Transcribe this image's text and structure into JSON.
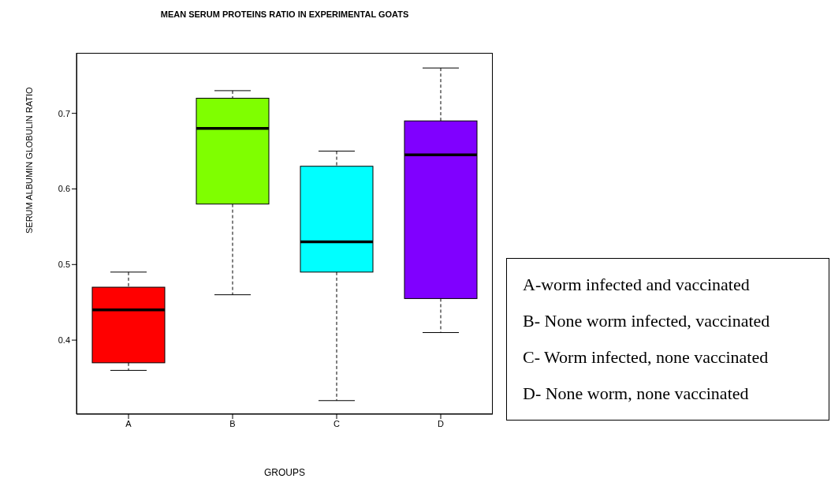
{
  "chart_data": {
    "type": "box",
    "title": "MEAN SERUM PROTEINS RATIO IN EXPERIMENTAL GOATS",
    "xlabel": "GROUPS",
    "ylabel": "SERUM ALBUMIN GLOBULIN RATIO",
    "categories": [
      "A",
      "B",
      "C",
      "D"
    ],
    "colors": [
      "#ff0000",
      "#7fff00",
      "#00ffff",
      "#8000ff"
    ],
    "boxes": [
      {
        "low": 0.36,
        "q1": 0.37,
        "median": 0.44,
        "q3": 0.47,
        "high": 0.49
      },
      {
        "low": 0.46,
        "q1": 0.58,
        "median": 0.68,
        "q3": 0.72,
        "high": 0.73
      },
      {
        "low": 0.32,
        "q1": 0.49,
        "median": 0.53,
        "q3": 0.63,
        "high": 0.65
      },
      {
        "low": 0.41,
        "q1": 0.455,
        "median": 0.645,
        "q3": 0.69,
        "high": 0.76
      }
    ],
    "ylim": [
      0.302,
      0.78
    ],
    "yticks": [
      0.4,
      0.5,
      0.6,
      0.7
    ],
    "annotations": [
      "A-worm infected and vaccinated",
      "B- None worm infected, vaccinated",
      "C- Worm infected, none vaccinated",
      "D- None worm, none vaccinated"
    ]
  }
}
